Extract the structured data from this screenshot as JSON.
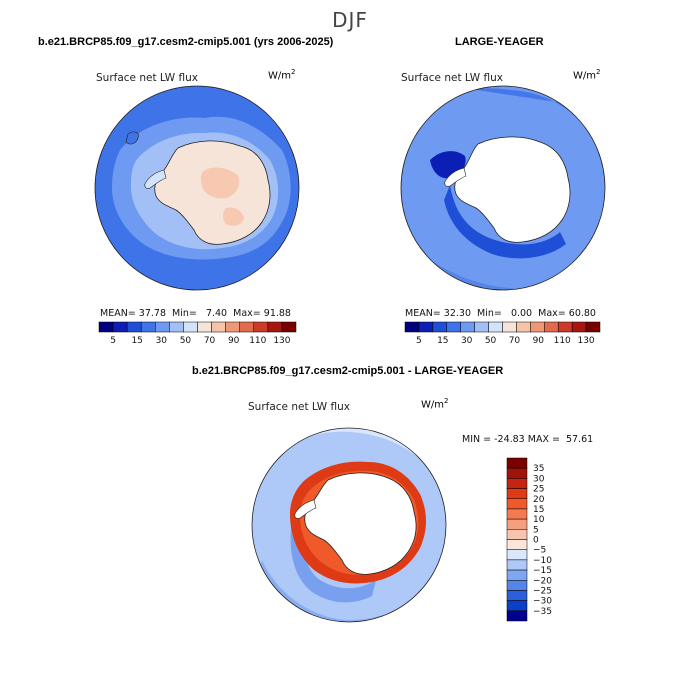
{
  "season": "DJF",
  "panels": [
    {
      "title": "b.e21.BRCP85.f09_g17.cesm2-cmip5.001 (yrs 2006-2025)",
      "variable": "Surface net LW flux",
      "units": "W/m",
      "units_sup": "2",
      "mean_label": "MEAN=",
      "mean": "37.78",
      "min_label": "Min=",
      "min": "7.40",
      "max_label": "Max=",
      "max": "91.88"
    },
    {
      "title": "LARGE-YEAGER",
      "variable": "Surface net LW flux",
      "units": "W/m",
      "units_sup": "2",
      "mean_label": "MEAN=",
      "mean": "32.30",
      "min_label": "Min=",
      "min": "0.00",
      "max_label": "Max=",
      "max": "60.80"
    }
  ],
  "diff_panel": {
    "title": "b.e21.BRCP85.f09_g17.cesm2-cmip5.001 - LARGE-YEAGER",
    "variable": "Surface net LW flux",
    "units": "W/m",
    "units_sup": "2",
    "minmax": "MIN = -24.83 MAX =  57.61"
  },
  "chart_data": [
    {
      "type": "heatmap",
      "title": "b.e21.BRCP85.f09_g17.cesm2-cmip5.001 (yrs 2006-2025)",
      "projection": "south polar stereographic",
      "variable": "Surface net LW flux",
      "units": "W/m^2",
      "stats": {
        "mean": 37.78,
        "min": 7.4,
        "max": 91.88
      },
      "colorbar": {
        "orientation": "horizontal",
        "tick_labels": [
          "5",
          "15",
          "30",
          "50",
          "70",
          "90",
          "110",
          "130"
        ],
        "colors": [
          "#00007f",
          "#0b1fb4",
          "#1f4fd6",
          "#3f73e8",
          "#6f9af2",
          "#a2c0f6",
          "#d3e3fb",
          "#f7e4d8",
          "#f6c2a8",
          "#ef9878",
          "#e26a4d",
          "#cc3b27",
          "#a8170f",
          "#7a0000"
        ]
      },
      "fields": {
        "ocean": "≈30–40",
        "sea-ice margin": "≈40–50",
        "antarctic interior": "≈55–70"
      }
    },
    {
      "type": "heatmap",
      "title": "LARGE-YEAGER",
      "projection": "south polar stereographic",
      "variable": "Surface net LW flux",
      "units": "W/m^2",
      "stats": {
        "mean": 32.3,
        "min": 0.0,
        "max": 60.8
      },
      "colorbar": {
        "orientation": "horizontal",
        "tick_labels": [
          "5",
          "15",
          "30",
          "50",
          "70",
          "90",
          "110",
          "130"
        ],
        "colors": [
          "#00007f",
          "#0b1fb4",
          "#1f4fd6",
          "#3f73e8",
          "#6f9af2",
          "#a2c0f6",
          "#d3e3fb",
          "#f7e4d8",
          "#f6c2a8",
          "#ef9878",
          "#e26a4d",
          "#cc3b27",
          "#a8170f",
          "#7a0000"
        ]
      },
      "fields": {
        "ocean": "≈25–40",
        "coastal": "≈10–20",
        "antarctica": "no data"
      }
    },
    {
      "type": "heatmap",
      "title": "b.e21.BRCP85.f09_g17.cesm2-cmip5.001 - LARGE-YEAGER",
      "projection": "south polar stereographic",
      "variable": "Surface net LW flux",
      "units": "W/m^2",
      "stats": {
        "min": -24.83,
        "max": 57.61
      },
      "colorbar": {
        "orientation": "vertical",
        "tick_labels": [
          "35",
          "30",
          "25",
          "20",
          "15",
          "10",
          "5",
          "0",
          "-5",
          "-10",
          "-15",
          "-20",
          "-25",
          "-30",
          "-35"
        ],
        "colors": [
          "#7a0000",
          "#a3120a",
          "#c52410",
          "#de3a16",
          "#ef5a2a",
          "#f47b50",
          "#f69f7e",
          "#f7c5ae",
          "#fbe6da",
          "#d9e6fb",
          "#aec8f7",
          "#7fa6f0",
          "#5585e8",
          "#2b5fdc",
          "#0a3fc8",
          "#00008f"
        ]
      },
      "fields": {
        "open ocean": "≈-5–-10",
        "coastal ring": "≈20–35"
      }
    }
  ]
}
